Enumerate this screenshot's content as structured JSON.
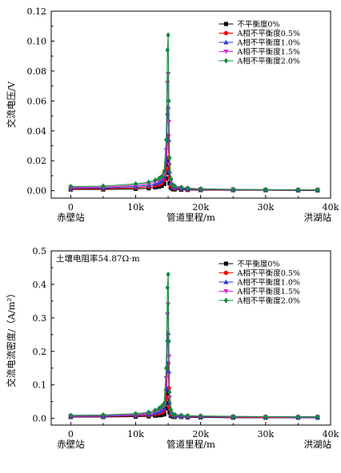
{
  "chart_data": [
    {
      "type": "line",
      "ylabel": "交流电压/V",
      "xlabel": "管道里程/m",
      "annotation": "",
      "start_station": "赤壁站",
      "end_station": "洪湖站",
      "xlim": [
        -3000,
        40000
      ],
      "ylim": [
        -0.005,
        0.12
      ],
      "xticks": [
        0,
        10000,
        20000,
        30000,
        40000
      ],
      "xtick_labels": [
        "0",
        "10k",
        "20k",
        "30k",
        "40k"
      ],
      "yticks": [
        0.0,
        0.02,
        0.04,
        0.06,
        0.08,
        0.1,
        0.12
      ],
      "ytick_labels": [
        "0.00",
        "0.02",
        "0.04",
        "0.06",
        "0.08",
        "0.10",
        "0.12"
      ],
      "legend_position": "top-right",
      "x": [
        0,
        5000,
        10000,
        12000,
        13000,
        13600,
        14000,
        14400,
        14700,
        14900,
        15000,
        15100,
        15200,
        15400,
        15700,
        16000,
        17000,
        18000,
        20000,
        25000,
        30000,
        35000,
        38000
      ],
      "series": [
        {
          "name": "不平衡度0%",
          "color": "#000000",
          "marker": "square",
          "values": [
            0.0008,
            0.0008,
            0.0012,
            0.0016,
            0.0022,
            0.0026,
            0.0032,
            0.0045,
            0.008,
            0.018,
            0.02,
            0.012,
            0.005,
            0.002,
            0.001,
            0.0008,
            0.0006,
            0.0005,
            0.0004,
            0.0003,
            0.0003,
            0.0002,
            0.0002
          ]
        },
        {
          "name": "A相不平衡度0.5%",
          "color": "#ff0000",
          "marker": "circle",
          "values": [
            0.0012,
            0.0013,
            0.002,
            0.0027,
            0.0035,
            0.0042,
            0.005,
            0.007,
            0.014,
            0.034,
            0.037,
            0.022,
            0.009,
            0.0035,
            0.0018,
            0.0014,
            0.001,
            0.0008,
            0.0006,
            0.0005,
            0.0004,
            0.0003,
            0.0003
          ]
        },
        {
          "name": "A相不平衡度1.0%",
          "color": "#2a3cd0",
          "marker": "triangle-up",
          "values": [
            0.0016,
            0.0018,
            0.0028,
            0.0036,
            0.0046,
            0.0055,
            0.0065,
            0.009,
            0.02,
            0.052,
            0.056,
            0.034,
            0.013,
            0.005,
            0.0025,
            0.0019,
            0.0014,
            0.0011,
            0.0008,
            0.0006,
            0.0005,
            0.0004,
            0.0004
          ]
        },
        {
          "name": "A相不平衡度1.5%",
          "color": "#d030d0",
          "marker": "triangle-down",
          "values": [
            0.0021,
            0.0023,
            0.0036,
            0.0046,
            0.0058,
            0.0068,
            0.008,
            0.011,
            0.027,
            0.072,
            0.078,
            0.046,
            0.017,
            0.0065,
            0.0032,
            0.0024,
            0.0018,
            0.0014,
            0.001,
            0.0008,
            0.0006,
            0.0005,
            0.0005
          ]
        },
        {
          "name": "A相不平衡度2.0%",
          "color": "#108a3a",
          "marker": "diamond",
          "values": [
            0.0028,
            0.003,
            0.0045,
            0.0056,
            0.007,
            0.0082,
            0.0095,
            0.013,
            0.034,
            0.094,
            0.104,
            0.06,
            0.022,
            0.008,
            0.004,
            0.003,
            0.0022,
            0.0017,
            0.0012,
            0.0009,
            0.0007,
            0.0006,
            0.0006
          ]
        }
      ]
    },
    {
      "type": "line",
      "ylabel": "交流电流密度/（A/m²）",
      "xlabel": "管道里程/m",
      "annotation": "土壤电阻率54.87Ω·m",
      "start_station": "赤壁站",
      "end_station": "洪湖站",
      "xlim": [
        -3000,
        40000
      ],
      "ylim": [
        -0.02,
        0.5
      ],
      "xticks": [
        0,
        10000,
        20000,
        30000,
        40000
      ],
      "xtick_labels": [
        "0",
        "10k",
        "20k",
        "30k",
        "40k"
      ],
      "yticks": [
        0.0,
        0.1,
        0.2,
        0.3,
        0.4,
        0.5
      ],
      "ytick_labels": [
        "0.0",
        "0.1",
        "0.2",
        "0.3",
        "0.4",
        "0.5"
      ],
      "legend_position": "top-right",
      "x": [
        0,
        5000,
        10000,
        12000,
        13000,
        13600,
        14000,
        14400,
        14700,
        14900,
        15000,
        15100,
        15200,
        15400,
        15700,
        16000,
        17000,
        18000,
        20000,
        25000,
        30000,
        35000,
        38000
      ],
      "series": [
        {
          "name": "不平衡度0%",
          "color": "#000000",
          "marker": "square",
          "values": [
            0.004,
            0.004,
            0.005,
            0.006,
            0.008,
            0.009,
            0.01,
            0.012,
            0.03,
            0.07,
            0.08,
            0.045,
            0.018,
            0.008,
            0.005,
            0.004,
            0.004,
            0.003,
            0.003,
            0.002,
            0.002,
            0.002,
            0.002
          ]
        },
        {
          "name": "A相不平衡度0.5%",
          "color": "#ff0000",
          "marker": "circle",
          "values": [
            0.005,
            0.005,
            0.007,
            0.009,
            0.012,
            0.015,
            0.018,
            0.022,
            0.06,
            0.15,
            0.165,
            0.09,
            0.032,
            0.012,
            0.007,
            0.006,
            0.005,
            0.004,
            0.004,
            0.003,
            0.003,
            0.003,
            0.003
          ]
        },
        {
          "name": "A相不平衡度1.0%",
          "color": "#2a3cd0",
          "marker": "triangle-up",
          "values": [
            0.006,
            0.006,
            0.009,
            0.012,
            0.016,
            0.02,
            0.024,
            0.03,
            0.09,
            0.235,
            0.255,
            0.14,
            0.048,
            0.016,
            0.009,
            0.007,
            0.006,
            0.005,
            0.005,
            0.004,
            0.004,
            0.003,
            0.003
          ]
        },
        {
          "name": "A相不平衡度1.5%",
          "color": "#d030d0",
          "marker": "triangle-down",
          "values": [
            0.007,
            0.008,
            0.011,
            0.015,
            0.02,
            0.025,
            0.03,
            0.038,
            0.12,
            0.31,
            0.34,
            0.185,
            0.062,
            0.02,
            0.011,
            0.009,
            0.007,
            0.006,
            0.006,
            0.005,
            0.004,
            0.004,
            0.004
          ]
        },
        {
          "name": "A相不平衡度2.0%",
          "color": "#108a3a",
          "marker": "diamond",
          "values": [
            0.009,
            0.01,
            0.014,
            0.018,
            0.024,
            0.03,
            0.036,
            0.045,
            0.15,
            0.39,
            0.43,
            0.23,
            0.078,
            0.025,
            0.013,
            0.011,
            0.009,
            0.008,
            0.007,
            0.006,
            0.005,
            0.005,
            0.005
          ]
        }
      ]
    }
  ]
}
